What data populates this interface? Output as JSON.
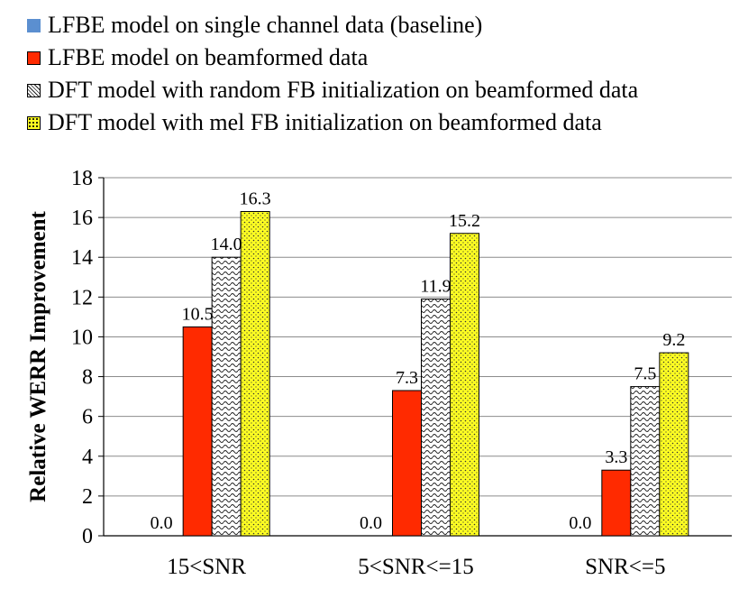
{
  "chart_data": {
    "type": "bar",
    "title": "",
    "xlabel": "",
    "ylabel": "Relative WERR  Improvement",
    "ylim": [
      0,
      18
    ],
    "ytick_step": 2,
    "grid": true,
    "legend_position": "top",
    "categories": [
      "15<SNR",
      "5<SNR<=15",
      "SNR<=5"
    ],
    "series": [
      {
        "name": "LFBE model on single channel data (baseline)",
        "values": [
          0.0,
          0.0,
          0.0
        ],
        "labels": [
          "0.0",
          "0.0",
          "0.0"
        ],
        "color": "#5b8fd0",
        "pattern": "solid"
      },
      {
        "name": "LFBE model on beamformed data",
        "values": [
          10.5,
          7.3,
          3.3
        ],
        "labels": [
          "10.5",
          "7.3",
          "3.3"
        ],
        "color": "#ff2a00",
        "pattern": "solid"
      },
      {
        "name": "DFT model with random FB initialization on beamformed data",
        "values": [
          14.0,
          11.9,
          7.5
        ],
        "labels": [
          "14.0",
          "11.9",
          "7.5"
        ],
        "color": "#ffffff",
        "pattern": "wave"
      },
      {
        "name": "DFT model with mel FB initialization on beamformed data",
        "values": [
          16.3,
          15.2,
          9.2
        ],
        "labels": [
          "16.3",
          "15.2",
          "9.2"
        ],
        "color": "#ffff22",
        "pattern": "dots"
      }
    ]
  }
}
